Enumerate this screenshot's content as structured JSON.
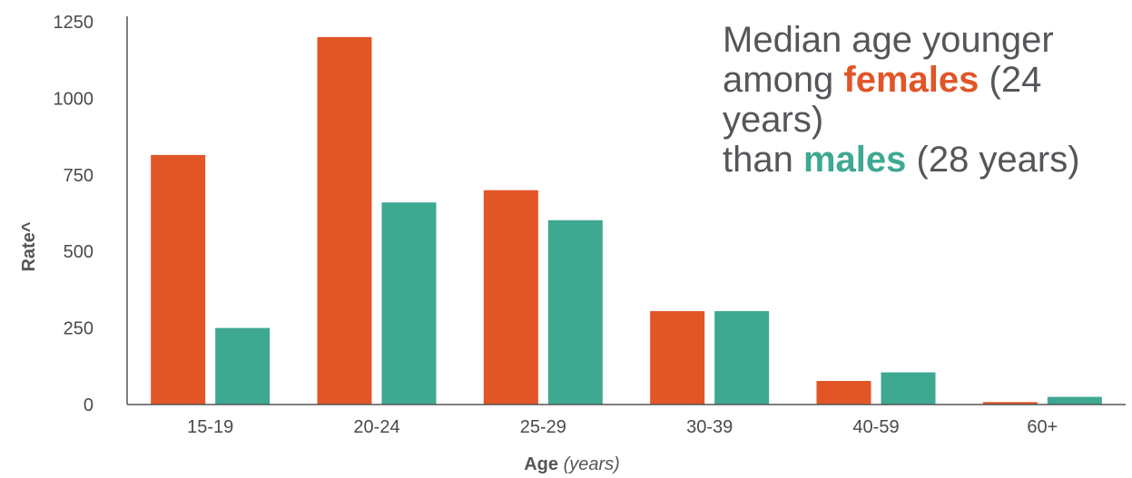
{
  "chart_data": {
    "type": "bar",
    "categories": [
      "15-19",
      "20-24",
      "25-29",
      "30-39",
      "40-59",
      "60+"
    ],
    "series": [
      {
        "name": "females",
        "color": "#e15527",
        "values": [
          815,
          1200,
          700,
          305,
          77,
          8
        ]
      },
      {
        "name": "males",
        "color": "#3ea891",
        "values": [
          250,
          660,
          602,
          305,
          105,
          25
        ]
      }
    ],
    "ylim": [
      0,
      1250
    ],
    "yticks": [
      0,
      250,
      500,
      750,
      1000,
      1250
    ],
    "ylabel": "Rate^",
    "xlabel": "Age",
    "xlabel_unit": "(years)",
    "grid": false
  },
  "annotation": {
    "line1": "Median age younger",
    "line2_pre": "among ",
    "line2_highlight": "females",
    "line2_post": " (24 years)",
    "line3_pre": "than ",
    "line3_highlight": "males",
    "line3_post": " (28 years)"
  }
}
